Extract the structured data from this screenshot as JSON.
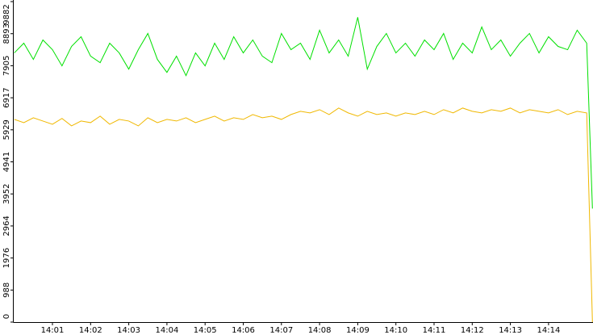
{
  "chart_data": {
    "type": "line",
    "x": [
      0,
      0.25,
      0.5,
      0.75,
      1,
      1.25,
      1.5,
      1.75,
      2,
      2.25,
      2.5,
      2.75,
      3,
      3.25,
      3.5,
      3.75,
      4,
      4.25,
      4.5,
      4.75,
      5,
      5.25,
      5.5,
      5.75,
      6,
      6.25,
      6.5,
      6.75,
      7,
      7.25,
      7.5,
      7.75,
      8,
      8.25,
      8.5,
      8.75,
      9,
      9.25,
      9.5,
      9.75,
      10,
      10.25,
      10.5,
      10.75,
      11,
      11.25,
      11.5,
      11.75,
      12,
      12.25,
      12.5,
      12.75,
      13,
      13.25,
      13.5,
      13.75,
      14,
      14.25,
      14.5,
      14.75,
      15,
      15.15
    ],
    "series": [
      {
        "color": "#00e000",
        "values": [
          8300,
          8600,
          8100,
          8700,
          8400,
          7900,
          8500,
          8800,
          8200,
          8000,
          8600,
          8300,
          7800,
          8400,
          8900,
          8100,
          7700,
          8200,
          7600,
          8300,
          7900,
          8600,
          8100,
          8800,
          8300,
          8700,
          8200,
          8000,
          8900,
          8400,
          8600,
          8100,
          9000,
          8300,
          8700,
          8200,
          9400,
          7800,
          8500,
          8900,
          8300,
          8600,
          8200,
          8700,
          8400,
          8900,
          8100,
          8600,
          8300,
          9100,
          8400,
          8700,
          8200,
          8600,
          8900,
          8300,
          8800,
          8500,
          8400,
          9000,
          8600,
          3500
        ]
      },
      {
        "color": "#f0b800",
        "values": [
          6250,
          6150,
          6300,
          6200,
          6100,
          6280,
          6050,
          6200,
          6150,
          6350,
          6100,
          6250,
          6200,
          6050,
          6300,
          6150,
          6250,
          6200,
          6300,
          6150,
          6250,
          6350,
          6200,
          6300,
          6250,
          6400,
          6300,
          6350,
          6250,
          6400,
          6500,
          6450,
          6550,
          6400,
          6600,
          6450,
          6350,
          6500,
          6400,
          6450,
          6350,
          6450,
          6400,
          6500,
          6400,
          6550,
          6450,
          6600,
          6500,
          6450,
          6550,
          6500,
          6600,
          6450,
          6550,
          6500,
          6450,
          6550,
          6400,
          6500,
          6450,
          0
        ]
      }
    ],
    "xlim": [
      0,
      15.15
    ],
    "xticks": [
      {
        "value": 1,
        "label": "14:01"
      },
      {
        "value": 2,
        "label": "14:02"
      },
      {
        "value": 3,
        "label": "14:03"
      },
      {
        "value": 4,
        "label": "14:04"
      },
      {
        "value": 5,
        "label": "14:05"
      },
      {
        "value": 6,
        "label": "14:06"
      },
      {
        "value": 7,
        "label": "14:07"
      },
      {
        "value": 8,
        "label": "14:08"
      },
      {
        "value": 9,
        "label": "14:09"
      },
      {
        "value": 10,
        "label": "14:10"
      },
      {
        "value": 11,
        "label": "14:11"
      },
      {
        "value": 12,
        "label": "14:12"
      },
      {
        "value": 13,
        "label": "14:13"
      },
      {
        "value": 14,
        "label": "14:14"
      }
    ],
    "ylim": [
      0,
      9882
    ],
    "yticks": [
      0,
      988,
      1976,
      2964,
      3952,
      4941,
      5929,
      6917,
      7905,
      8893,
      9882
    ]
  }
}
